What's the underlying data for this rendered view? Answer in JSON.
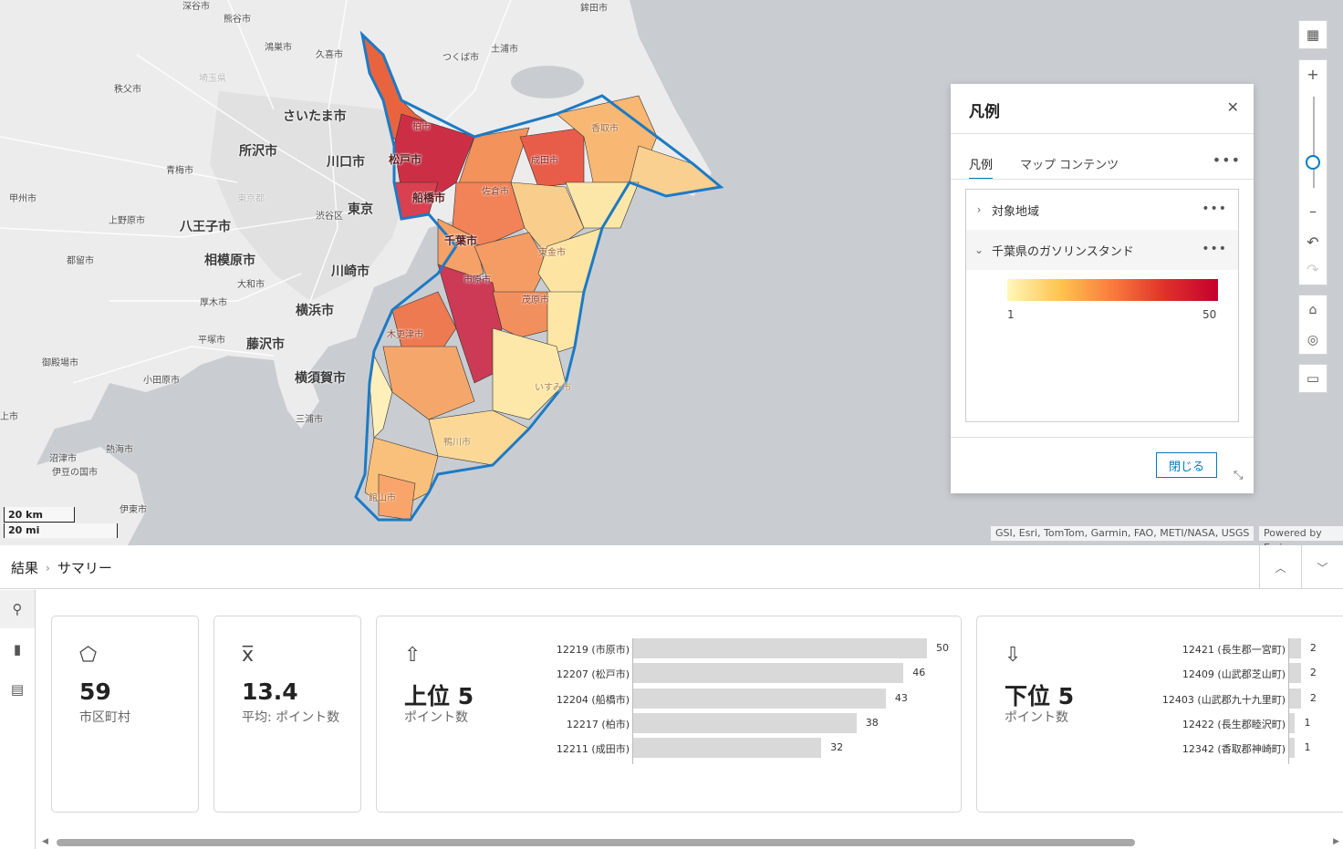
{
  "map": {
    "labels": {
      "fukaya": "深谷市",
      "kumagaya": "熊谷市",
      "hokota": "鉾田市",
      "konosu": "鴻巣市",
      "kuki": "久喜市",
      "tsukuba": "つくば市",
      "tsuchiura": "土浦市",
      "saitama_pref": "埼玉県",
      "chichibu": "秩父市",
      "saitama": "さいたま市",
      "tokorozawa": "所沢市",
      "kawaguchi": "川口市",
      "ome": "青梅市",
      "tokyo_pref": "東京都",
      "tokyo": "東京",
      "kofu": "甲州市",
      "uenohara": "上野原市",
      "hachioji": "八王子市",
      "shibuya": "渋谷区",
      "tsuru": "都留市",
      "sagamihara": "相模原市",
      "kawasaki": "川崎市",
      "yamato": "大和市",
      "atsugi": "厚木市",
      "yokohama": "横浜市",
      "hiratsuka": "平塚市",
      "fujisawa": "藤沢市",
      "gotemba": "御殿場市",
      "odawara": "小田原市",
      "yokosuka": "横須賀市",
      "miura": "三浦市",
      "numazu": "沼津市",
      "izunokuni": "伊豆の国市",
      "atami": "熱海市",
      "ito": "伊東市",
      "mishima": "上市",
      "kashiwa": "柏市",
      "matsudo": "松戸市",
      "funabashi": "船橋市",
      "narita": "成田市",
      "katori": "香取市",
      "sakura": "佐倉市",
      "chiba": "千葉市",
      "togane": "東金市",
      "ichihara": "市原市",
      "mobara": "茂原市",
      "kisarazu": "木更津市",
      "isumi": "いすみ市",
      "kamogawa": "鴨川市",
      "tateyama": "館山市"
    },
    "scale": {
      "km": "20 km",
      "mi": "20 mi"
    },
    "attribution": "GSI, Esri, TomTom, Garmin, FAO, METI/NASA, USGS",
    "powered_by": "Powered by Esri",
    "colors": {
      "water": "#bcc0c4",
      "land": "#ececec",
      "outline": "#1d7ac4"
    }
  },
  "legend": {
    "title": "凡例",
    "tabs": [
      "凡例",
      "マップ コンテンツ"
    ],
    "layers": [
      "対象地域",
      "千葉県のガソリンスタンド"
    ],
    "ramp_min": "1",
    "ramp_max": "50",
    "close_label": "閉じる"
  },
  "results": {
    "breadcrumb": [
      "結果",
      "サマリー"
    ],
    "cards": {
      "count": {
        "value": "59",
        "label": "市区町村"
      },
      "mean": {
        "value": "13.4",
        "label": "平均: ポイント数"
      },
      "top": {
        "title": "上位 5",
        "label": "ポイント数"
      },
      "bottom": {
        "title": "下位 5",
        "label": "ポイント数"
      }
    },
    "top5": [
      {
        "name": "12219 (市原市)",
        "value": 50
      },
      {
        "name": "12207 (松戸市)",
        "value": 46
      },
      {
        "name": "12204 (船橋市)",
        "value": 43
      },
      {
        "name": "12217 (柏市)",
        "value": 38
      },
      {
        "name": "12211 (成田市)",
        "value": 32
      }
    ],
    "bottom5": [
      {
        "name": "12421 (長生郡一宮町)",
        "value": 2
      },
      {
        "name": "12409 (山武郡芝山町)",
        "value": 2
      },
      {
        "name": "12403 (山武郡九十九里町)",
        "value": 2
      },
      {
        "name": "12422 (長生郡睦沢町)",
        "value": 1
      },
      {
        "name": "12342 (香取郡神崎町)",
        "value": 1
      }
    ],
    "bar_max": 50
  }
}
